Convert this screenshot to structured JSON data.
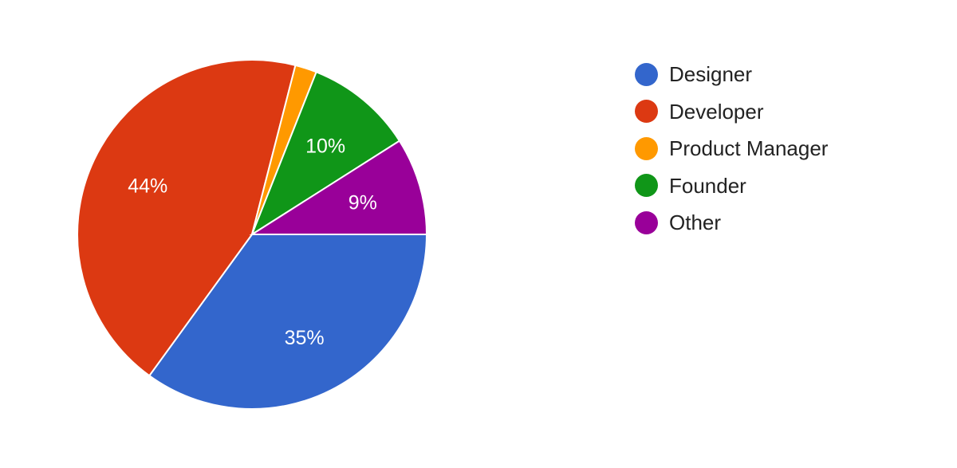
{
  "chart_data": {
    "type": "pie",
    "title": "",
    "start_angle": "3 o'clock, clockwise",
    "slices": [
      {
        "label": "Designer",
        "value": 35,
        "display": "35%",
        "color": "#3366cc"
      },
      {
        "label": "Developer",
        "value": 44,
        "display": "44%",
        "color": "#dc3912"
      },
      {
        "label": "Product Manager",
        "value": 2,
        "display": "",
        "color": "#ff9900"
      },
      {
        "label": "Founder",
        "value": 10,
        "display": "10%",
        "color": "#109618"
      },
      {
        "label": "Other",
        "value": 9,
        "display": "9%",
        "color": "#990099"
      }
    ],
    "legend_position": "right"
  },
  "legend": {
    "items": [
      {
        "label": "Designer",
        "color": "#3366cc"
      },
      {
        "label": "Developer",
        "color": "#dc3912"
      },
      {
        "label": "Product Manager",
        "color": "#ff9900"
      },
      {
        "label": "Founder",
        "color": "#109618"
      },
      {
        "label": "Other",
        "color": "#990099"
      }
    ]
  }
}
